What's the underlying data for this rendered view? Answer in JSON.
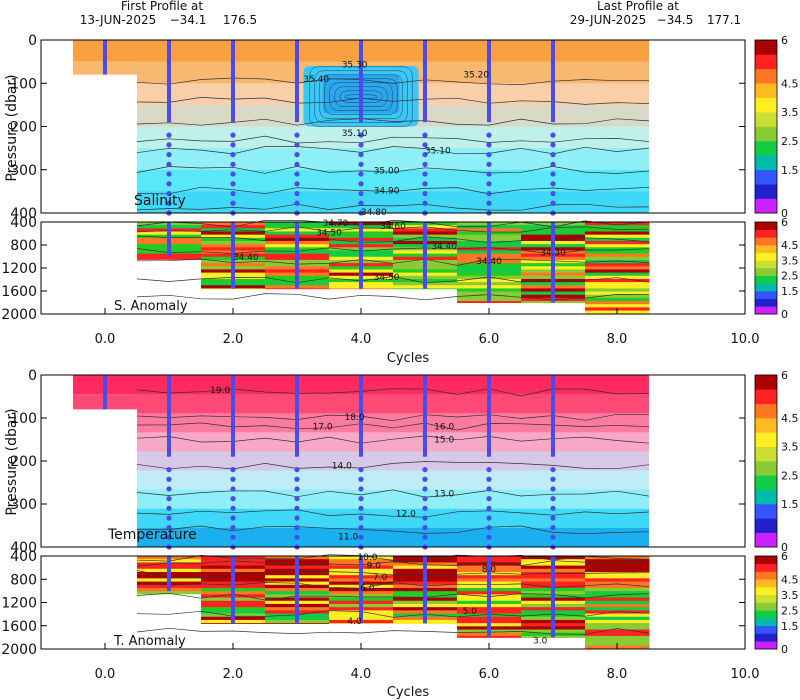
{
  "header": {
    "first_label": "First Profile at",
    "first_date": "13-JUN-2025",
    "first_lat": "−34.1",
    "first_lon": "176.5",
    "last_label": "Last Profile at",
    "last_date": "29-JUN-2025",
    "last_lat": "−34.5",
    "last_lon": "177.1"
  },
  "colors": {
    "colorbar": [
      "#cc22ff",
      "#2222cc",
      "#3355ff",
      "#00bbaa",
      "#11cc44",
      "#88cc33",
      "#ccdd33",
      "#ffee22",
      "#ffbb22",
      "#ff7722",
      "#ff2222",
      "#aa0000"
    ],
    "salinity_bands": [
      "#f8a040",
      "#f8b870",
      "#f8cfa8",
      "#d9d9c8",
      "#bff0ec",
      "#8ff0f8",
      "#5ae8f8",
      "#40d8f8"
    ],
    "temperature_bands": [
      "#ff2a60",
      "#ff4a78",
      "#ff7aa0",
      "#f7a8c8",
      "#d8c8e8",
      "#c0ecf8",
      "#90eef8",
      "#40d8f8",
      "#1ab0f0"
    ],
    "anomaly_cells": [
      "#aa0000",
      "#ff2222",
      "#ff7722",
      "#ffee22",
      "#88cc33",
      "#11cc44",
      "#22cc22"
    ],
    "profile_dots": "#4a4aee",
    "contour": "#333333"
  },
  "chart_data": [
    {
      "type": "heatmap",
      "panel": "salinity",
      "label": "Salinity",
      "ylabel": "Pressure (dbar)",
      "xlim": [
        -1,
        10
      ],
      "ylim": [
        0,
        400
      ],
      "y_ticks": [
        "0",
        "100",
        "200",
        "300",
        "400"
      ],
      "y_tick_values": [
        0,
        100,
        200,
        300,
        400
      ],
      "profile_cycles": [
        0,
        1,
        2,
        3,
        4,
        5,
        6,
        7
      ],
      "contour_labels": [
        {
          "text": "35.30",
          "x": 3.9,
          "y": 57
        },
        {
          "text": "35.40",
          "x": 3.3,
          "y": 90
        },
        {
          "text": "35.20",
          "x": 5.8,
          "y": 80
        },
        {
          "text": "35.10",
          "x": 3.9,
          "y": 215
        },
        {
          "text": "35.10",
          "x": 5.2,
          "y": 255
        },
        {
          "text": "35.00",
          "x": 4.4,
          "y": 302
        },
        {
          "text": "34.90",
          "x": 4.4,
          "y": 348
        },
        {
          "text": "34.80",
          "x": 4.2,
          "y": 398
        }
      ],
      "colorbar_ticks": [
        "6",
        "4.5",
        "3.5",
        "2.5",
        "1.5",
        "0"
      ]
    },
    {
      "type": "heatmap",
      "panel": "salinity-anomaly",
      "label": "S. Anomaly",
      "ylim": [
        400,
        2000
      ],
      "y_ticks": [
        "400",
        "800",
        "1200",
        "1600",
        "2000"
      ],
      "y_tick_values": [
        400,
        800,
        1200,
        1600,
        2000
      ],
      "contour_labels": [
        {
          "text": "34.70",
          "x": 3.6,
          "y": 420
        },
        {
          "text": "34.60",
          "x": 4.5,
          "y": 470
        },
        {
          "text": "34.50",
          "x": 3.5,
          "y": 580
        },
        {
          "text": "34.40",
          "x": 5.3,
          "y": 820
        },
        {
          "text": "34.40",
          "x": 2.2,
          "y": 1010
        },
        {
          "text": "34.40",
          "x": 6.0,
          "y": 1080
        },
        {
          "text": "34.30",
          "x": 7.0,
          "y": 930
        },
        {
          "text": "34.50",
          "x": 4.4,
          "y": 1360
        }
      ],
      "colorbar_ticks": [
        "6",
        "4.5",
        "3.5",
        "2.5",
        "1.5",
        "0"
      ]
    },
    {
      "type": "heatmap",
      "panel": "temperature",
      "label": "Temperature",
      "ylabel": "Pressure (dbar)",
      "xlim": [
        -1,
        10
      ],
      "ylim": [
        0,
        400
      ],
      "y_ticks": [
        "0",
        "100",
        "200",
        "300",
        "400"
      ],
      "y_tick_values": [
        0,
        100,
        200,
        300,
        400
      ],
      "profile_cycles": [
        0,
        1,
        2,
        3,
        4,
        5,
        6,
        7
      ],
      "contour_labels": [
        {
          "text": "19.0",
          "x": 1.8,
          "y": 35
        },
        {
          "text": "18.0",
          "x": 3.9,
          "y": 98
        },
        {
          "text": "17.0",
          "x": 3.4,
          "y": 120
        },
        {
          "text": "16.0",
          "x": 5.3,
          "y": 120
        },
        {
          "text": "15.0",
          "x": 5.3,
          "y": 150
        },
        {
          "text": "14.0",
          "x": 3.7,
          "y": 210
        },
        {
          "text": "13.0",
          "x": 5.3,
          "y": 275
        },
        {
          "text": "12.0",
          "x": 4.7,
          "y": 322
        },
        {
          "text": "11.0",
          "x": 3.8,
          "y": 376
        }
      ],
      "colorbar_ticks": [
        "6",
        "4.5",
        "3.5",
        "2.5",
        "1.5",
        "0"
      ]
    },
    {
      "type": "heatmap",
      "panel": "temperature-anomaly",
      "label": "T. Anomaly",
      "xlabel": "Cycles",
      "ylim": [
        400,
        2000
      ],
      "y_ticks": [
        "400",
        "800",
        "1200",
        "1600",
        "2000"
      ],
      "y_tick_values": [
        400,
        800,
        1200,
        1600,
        2000
      ],
      "x_ticks": [
        "0.0",
        "2.0",
        "4.0",
        "6.0",
        "8.0",
        "10.0"
      ],
      "x_tick_values": [
        0,
        2,
        4,
        6,
        8,
        10
      ],
      "contour_labels": [
        {
          "text": "10.0",
          "x": 4.1,
          "y": 420
        },
        {
          "text": "9.0",
          "x": 4.2,
          "y": 560
        },
        {
          "text": "8.0",
          "x": 6.0,
          "y": 620
        },
        {
          "text": "7.0",
          "x": 4.3,
          "y": 760
        },
        {
          "text": "6.0",
          "x": 4.1,
          "y": 950
        },
        {
          "text": "5.0",
          "x": 5.7,
          "y": 1350
        },
        {
          "text": "4.0",
          "x": 3.9,
          "y": 1520
        },
        {
          "text": "3.0",
          "x": 6.8,
          "y": 1850
        }
      ],
      "colorbar_ticks": [
        "6",
        "4.5",
        "3.5",
        "2.5",
        "1.5",
        "0"
      ]
    }
  ]
}
